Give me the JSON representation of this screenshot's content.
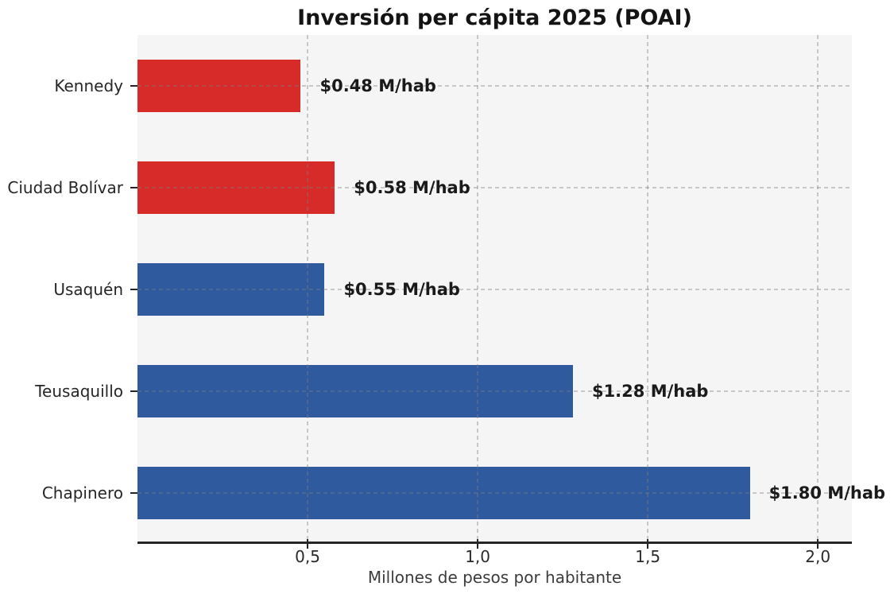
{
  "chart_data": {
    "type": "bar",
    "orientation": "horizontal",
    "title": "Inversión per cápita 2025 (POAI)",
    "xlabel": "Millones de pesos por habitante",
    "categories": [
      "Kennedy",
      "Ciudad Bolívar",
      "Usaquén",
      "Teusaquillo",
      "Chapinero"
    ],
    "values": [
      0.48,
      0.58,
      0.55,
      1.28,
      1.8
    ],
    "value_labels": [
      "$0.48 M/hab",
      "$0.58 M/hab",
      "$0.55 M/hab",
      "$1.28 M/hab",
      "$1.80 M/hab"
    ],
    "bar_colors": [
      "#d62b28",
      "#d62b28",
      "#2f5b9e",
      "#2f5b9e",
      "#2f5b9e"
    ],
    "xlim": [
      0,
      2.1
    ],
    "xticks": [
      0.5,
      1.0,
      1.5,
      2.0
    ],
    "xtick_labels": [
      "0,5",
      "1,0",
      "1,5",
      "2,0"
    ],
    "grid": "dashed, both axes, drawn over bars",
    "legend": "none",
    "colors": {
      "red_bar": "#d62b28",
      "blue_bar": "#2f5b9e",
      "plot_background": "#f5f5f5",
      "figure_background": "#ffffff",
      "gridline": "#bdbdbd",
      "axis_spine": "#262626",
      "text": "#1a1a1a"
    }
  }
}
